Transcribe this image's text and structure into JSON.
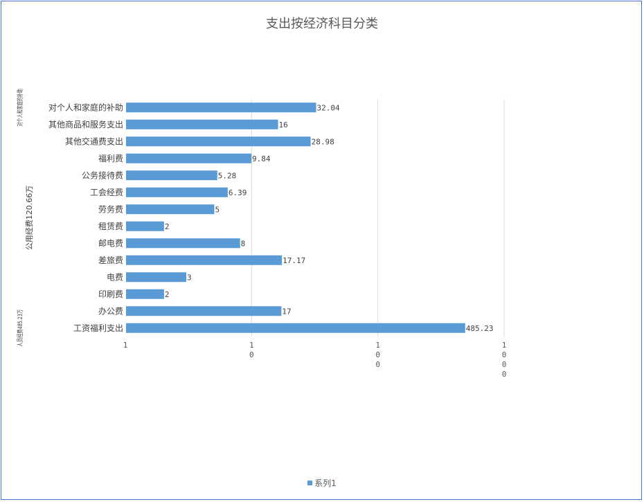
{
  "chart_data": {
    "type": "bar",
    "orientation": "horizontal",
    "title": "支出按经济科目分类",
    "x_scale": "log",
    "xlim": [
      1,
      1000
    ],
    "x_ticks": [
      {
        "value": 1,
        "label": "1"
      },
      {
        "value": 10,
        "label": "10"
      },
      {
        "value": 100,
        "label": "100"
      },
      {
        "value": 1000,
        "label": "1000"
      }
    ],
    "grid": true,
    "legend": "bottom",
    "color": "#5b9bd5",
    "groups": [
      {
        "label": "对个人和家庭的补助",
        "categories": [
          "对个人和家庭的补助"
        ]
      },
      {
        "label": "公用经费120.66万",
        "categories": [
          "其他商品和服务支出",
          "其他交通费支出",
          "福利费",
          "公务接待费",
          "工会经费",
          "劳务费",
          "租赁费",
          "邮电费",
          "差旅费",
          "电费",
          "印刷费",
          "办公费"
        ]
      },
      {
        "label": "人员经费485.23万",
        "categories": [
          "工资福利支出"
        ]
      }
    ],
    "categories": [
      "对个人和家庭的补助",
      "其他商品和服务支出",
      "其他交通费支出",
      "福利费",
      "公务接待费",
      "工会经费",
      "劳务费",
      "租赁费",
      "邮电费",
      "差旅费",
      "电费",
      "印刷费",
      "办公费",
      "工资福利支出"
    ],
    "series": [
      {
        "name": "系列1",
        "values": [
          32.04,
          16,
          28.98,
          9.84,
          5.28,
          6.39,
          5,
          2,
          8,
          17.17,
          3,
          2,
          17,
          485.23
        ]
      }
    ]
  }
}
